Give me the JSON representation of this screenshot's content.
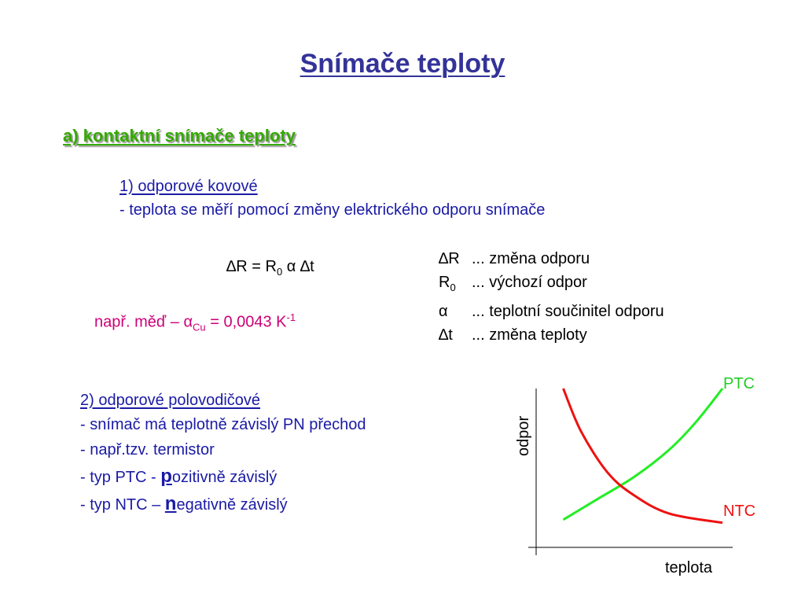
{
  "page": {
    "title": "Snímače teploty",
    "section_a": "a) kontaktní snímače teploty"
  },
  "metal": {
    "heading": "1) odporové kovové",
    "description": "- teplota se měří pomocí změny elektrického odporu snímače",
    "formula": {
      "delta": "∆",
      "lhs": "R = R",
      "sub0": "0",
      "alpha": "α",
      "delta2": "∆",
      "t": "t"
    },
    "example": {
      "prefix": "např. měď – ",
      "alpha": "α",
      "sub": "Cu",
      "value": " = 0,0043 K",
      "sup": "-1"
    },
    "legend": [
      {
        "symbol": "∆R",
        "sub": "",
        "text": "... změna odporu"
      },
      {
        "symbol": "R",
        "sub": "0",
        "text": "... výchozí odpor"
      },
      {
        "symbol": "α",
        "sub": "",
        "text": "... teplotní součinitel odporu"
      },
      {
        "symbol": "∆t",
        "sub": "",
        "text": "... změna teploty"
      }
    ]
  },
  "semi": {
    "heading": "2) odporové polovodičové",
    "line1": "- snímač má teplotně závislý PN přechod",
    "line2": "- např.tzv. termistor",
    "line3_prefix": "- typ PTC - ",
    "line3_letter": "p",
    "line3_rest": "ozitivně závislý",
    "line4_prefix": "- typ NTC – ",
    "line4_letter": "n",
    "line4_rest": "egativně závislý"
  },
  "chart_data": {
    "type": "line",
    "xlabel": "teplota",
    "ylabel": "odpor",
    "series": [
      {
        "name": "PTC",
        "color": "#22ee22",
        "x": [
          0.1,
          0.3,
          0.5,
          0.7,
          0.85,
          1.0
        ],
        "y": [
          0.14,
          0.28,
          0.42,
          0.6,
          0.78,
          1.0
        ]
      },
      {
        "name": "NTC",
        "color": "#ee1111",
        "x": [
          0.1,
          0.2,
          0.35,
          0.5,
          0.7,
          1.0
        ],
        "y": [
          1.0,
          0.72,
          0.45,
          0.3,
          0.18,
          0.12
        ]
      }
    ]
  }
}
